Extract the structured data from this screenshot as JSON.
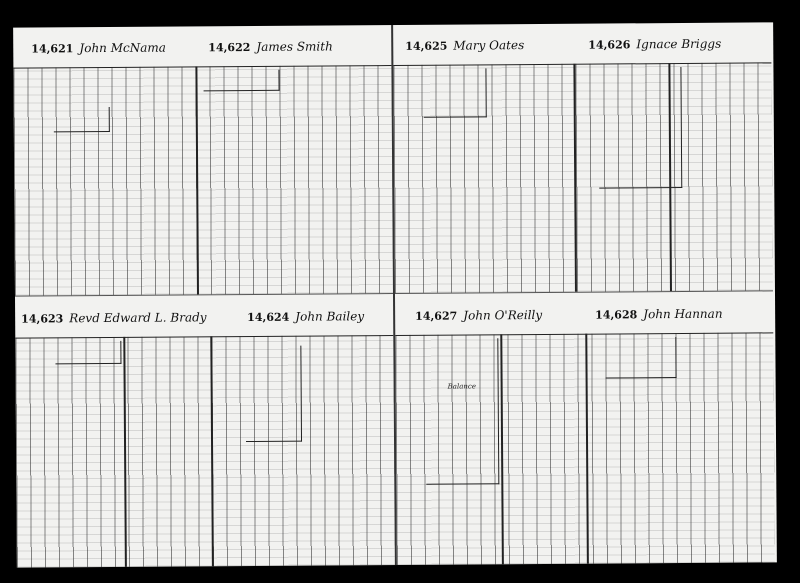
{
  "ledger": {
    "accounts": [
      {
        "number": "14,621",
        "name": "John McNama"
      },
      {
        "number": "14,622",
        "name": "James Smith"
      },
      {
        "number": "14,625",
        "name": "Mary Oates"
      },
      {
        "number": "14,626",
        "name": "Ignace Briggs"
      },
      {
        "number": "14,623",
        "name": "Revd Edward L. Brady"
      },
      {
        "number": "14,624",
        "name": "John Bailey"
      },
      {
        "number": "14,627",
        "name": "John O'Reilly"
      },
      {
        "number": "14,628",
        "name": "John Hannan"
      }
    ],
    "balance_label": "Balance"
  }
}
